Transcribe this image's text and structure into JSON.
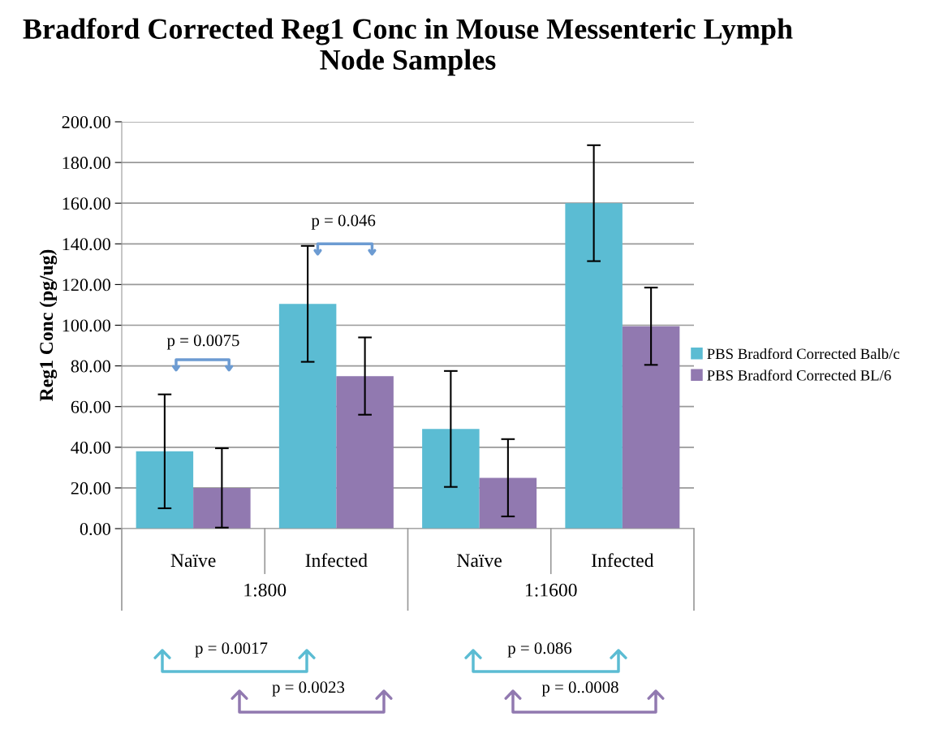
{
  "chart_data": {
    "type": "bar",
    "title": "Bradford Corrected Reg1 Conc in Mouse Messenteric Lymph Node Samples",
    "ylabel": "Reg1 Conc (pg/ug)",
    "categories": [
      "Naïve",
      "Infected",
      "Naïve",
      "Infected"
    ],
    "series": [
      {
        "name": "PBS Bradford Corrected Balb/c",
        "color": "#5bbcd3",
        "values": [
          38,
          110.5,
          49,
          160
        ],
        "errors": [
          28,
          28.5,
          28.5,
          28.5
        ]
      },
      {
        "name": "PBS Bradford Corrected BL/6",
        "color": "#9179b0",
        "values": [
          20,
          75,
          25,
          99.5
        ],
        "errors": [
          19.5,
          19,
          19,
          19
        ]
      }
    ],
    "ylim": [
      0,
      200
    ],
    "yticks": [
      {
        "value": 0,
        "label": "0.00"
      },
      {
        "value": 20,
        "label": "20.00"
      },
      {
        "value": 40,
        "label": "40.00"
      },
      {
        "value": 60,
        "label": "60.00"
      },
      {
        "value": 80,
        "label": "80.00"
      },
      {
        "value": 100,
        "label": "100.00"
      },
      {
        "value": 120,
        "label": "120.00"
      },
      {
        "value": 140,
        "label": "140.00"
      },
      {
        "value": 160,
        "label": "160.00"
      },
      {
        "value": 180,
        "label": "180.00"
      },
      {
        "value": 200,
        "label": "200.00"
      }
    ],
    "grid": "y",
    "legend": "right",
    "annotations": [
      "p = 0.0075",
      "p = 0.046",
      "p = 0.0017",
      "p = 0.0023",
      "p = 0.086",
      "p = 0..0008",
      "1:800",
      "1:1600"
    ]
  }
}
